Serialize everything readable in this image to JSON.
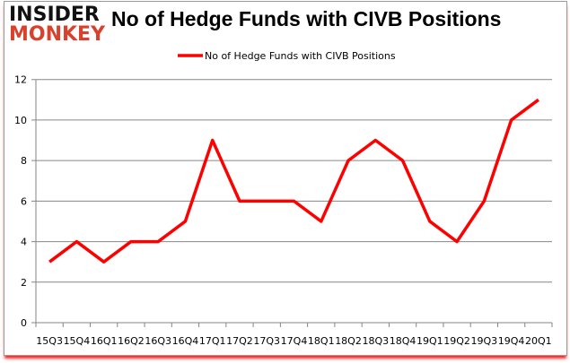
{
  "logo": {
    "line1": "INSIDER",
    "line2": "MONKEY"
  },
  "chart_data": {
    "type": "line",
    "title": "No of Hedge Funds with CIVB Positions",
    "categories": [
      "15Q3",
      "15Q4",
      "16Q1",
      "16Q2",
      "16Q3",
      "16Q4",
      "17Q1",
      "17Q2",
      "17Q3",
      "17Q4",
      "18Q1",
      "18Q2",
      "18Q3",
      "18Q4",
      "19Q1",
      "19Q2",
      "19Q3",
      "19Q4",
      "20Q1"
    ],
    "series": [
      {
        "name": "No of Hedge Funds with CIVB Positions",
        "values": [
          3,
          4,
          3,
          4,
          4,
          5,
          9,
          6,
          6,
          6,
          5,
          8,
          9,
          8,
          5,
          4,
          6,
          10,
          11
        ],
        "color": "#ff0000"
      }
    ],
    "ylim": [
      0,
      12
    ],
    "yticks": [
      0,
      2,
      4,
      6,
      8,
      10,
      12
    ],
    "grid": true,
    "legend": "top-center",
    "xlabel": "",
    "ylabel": ""
  }
}
